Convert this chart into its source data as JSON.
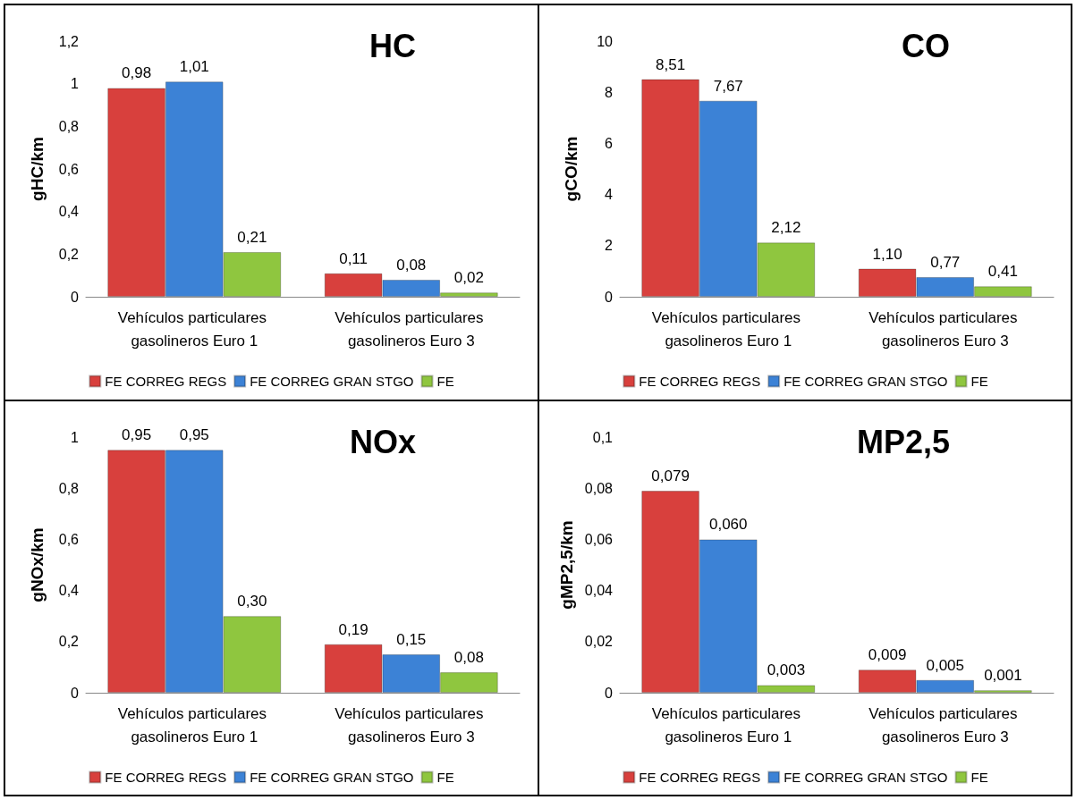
{
  "chart_data": [
    {
      "type": "bar",
      "title": "HC",
      "ylabel": "gHC/km",
      "categories": [
        "Vehículos particulares gasolineros Euro 1",
        "Vehículos particulares gasolineros Euro 3"
      ],
      "ylim": [
        0,
        1.2
      ],
      "yticks": [
        0,
        {
          "value": 0.2,
          "label": "0,2"
        },
        {
          "value": 0.4,
          "label": "0,4"
        },
        {
          "value": 0.6,
          "label": "0,6"
        },
        {
          "value": 0.8,
          "label": "0,8"
        },
        1,
        {
          "value": 1.2,
          "label": "1,2"
        }
      ],
      "grid": false,
      "legend": "bottom",
      "series": [
        {
          "name": "FE CORREG REGS",
          "color": "#d8403d",
          "values": [
            0.98,
            0.11
          ],
          "value_labels": [
            "0,98",
            "0,11"
          ]
        },
        {
          "name": "FE CORREG GRAN STGO",
          "color": "#3c82d6",
          "values": [
            1.01,
            0.08
          ],
          "value_labels": [
            "1,01",
            "0,08"
          ]
        },
        {
          "name": "FE",
          "color": "#8fc63f",
          "values": [
            0.21,
            0.02
          ],
          "value_labels": [
            "0,21",
            "0,02"
          ]
        }
      ]
    },
    {
      "type": "bar",
      "title": "CO",
      "ylabel": "gCO/km",
      "categories": [
        "Vehículos particulares gasolineros Euro 1",
        "Vehículos particulares gasolineros Euro 3"
      ],
      "ylim": [
        0,
        10
      ],
      "yticks": [
        0,
        2,
        4,
        6,
        8,
        10
      ],
      "grid": false,
      "legend": "bottom",
      "series": [
        {
          "name": "FE CORREG REGS",
          "color": "#d8403d",
          "values": [
            8.51,
            1.1
          ],
          "value_labels": [
            "8,51",
            "1,10"
          ]
        },
        {
          "name": "FE CORREG GRAN STGO",
          "color": "#3c82d6",
          "values": [
            7.67,
            0.77
          ],
          "value_labels": [
            "7,67",
            "0,77"
          ]
        },
        {
          "name": "FE",
          "color": "#8fc63f",
          "values": [
            2.12,
            0.41
          ],
          "value_labels": [
            "2,12",
            "0,41"
          ]
        }
      ]
    },
    {
      "type": "bar",
      "title": "NOx",
      "ylabel": "gNOx/km",
      "categories": [
        "Vehículos particulares gasolineros Euro 1",
        "Vehículos particulares gasolineros Euro 3"
      ],
      "ylim": [
        0,
        1
      ],
      "yticks": [
        0,
        {
          "value": 0.2,
          "label": "0,2"
        },
        {
          "value": 0.4,
          "label": "0,4"
        },
        {
          "value": 0.6,
          "label": "0,6"
        },
        {
          "value": 0.8,
          "label": "0,8"
        },
        1
      ],
      "grid": false,
      "legend": "bottom",
      "series": [
        {
          "name": "FE CORREG REGS",
          "color": "#d8403d",
          "values": [
            0.95,
            0.19
          ],
          "value_labels": [
            "0,95",
            "0,19"
          ]
        },
        {
          "name": "FE CORREG GRAN STGO",
          "color": "#3c82d6",
          "values": [
            0.95,
            0.15
          ],
          "value_labels": [
            "0,95",
            "0,15"
          ]
        },
        {
          "name": "FE",
          "color": "#8fc63f",
          "values": [
            0.3,
            0.08
          ],
          "value_labels": [
            "0,30",
            "0,08"
          ]
        }
      ]
    },
    {
      "type": "bar",
      "title": "MP2,5",
      "ylabel": "gMP2,5/km",
      "categories": [
        "Vehículos particulares gasolineros Euro 1",
        "Vehículos particulares gasolineros Euro 3"
      ],
      "ylim": [
        0,
        0.1
      ],
      "yticks": [
        0,
        {
          "value": 0.02,
          "label": "0,02"
        },
        {
          "value": 0.04,
          "label": "0,04"
        },
        {
          "value": 0.06,
          "label": "0,06"
        },
        {
          "value": 0.08,
          "label": "0,08"
        },
        {
          "value": 0.1,
          "label": "0,1"
        }
      ],
      "grid": false,
      "legend": "bottom",
      "series": [
        {
          "name": "FE CORREG REGS",
          "color": "#d8403d",
          "values": [
            0.079,
            0.009
          ],
          "value_labels": [
            "0,079",
            "0,009"
          ]
        },
        {
          "name": "FE CORREG GRAN STGO",
          "color": "#3c82d6",
          "values": [
            0.06,
            0.005
          ],
          "value_labels": [
            "0,060",
            "0,005"
          ]
        },
        {
          "name": "FE",
          "color": "#8fc63f",
          "values": [
            0.003,
            0.001
          ],
          "value_labels": [
            "0,003",
            "0,001"
          ]
        }
      ]
    }
  ]
}
